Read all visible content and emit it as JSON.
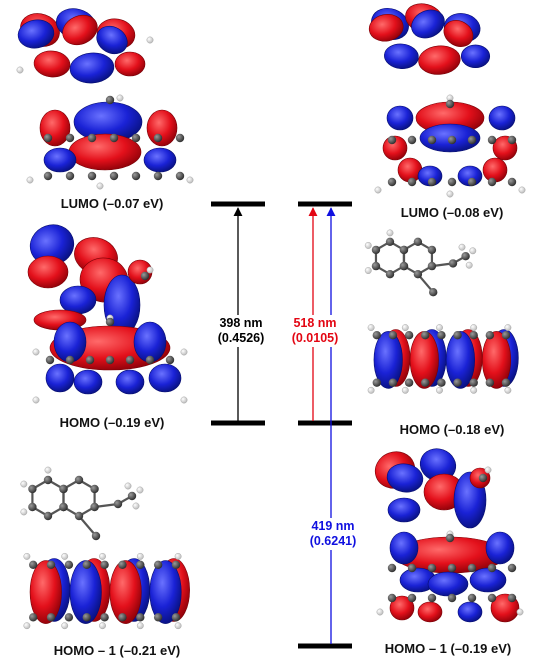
{
  "colors": {
    "lobe_positive": "#e3101b",
    "lobe_negative": "#1a22d6",
    "carbon": "#3a3a3a",
    "hydrogen": "#f2f2f2",
    "level": "#000000",
    "black_transition": "#000000",
    "red_transition": "#e30613",
    "blue_transition": "#1010e0"
  },
  "left_column": {
    "lumo_caption": "LUMO (–0.07 eV)",
    "homo_caption": "HOMO (–0.19 eV)",
    "homo1_caption": "HOMO – 1 (–0.21 eV)"
  },
  "right_column": {
    "lumo_caption": "LUMO (–0.08 eV)",
    "homo_caption": "HOMO (–0.18 eV)",
    "homo1_caption": "HOMO – 1 (–0.19 eV)"
  },
  "transitions": {
    "left": {
      "wavelength": "398 nm",
      "oscillator": "(0.4526)"
    },
    "right_red": {
      "wavelength": "518 nm",
      "oscillator": "(0.0105)"
    },
    "right_blue": {
      "wavelength": "419 nm",
      "oscillator": "(0.6241)"
    }
  }
}
